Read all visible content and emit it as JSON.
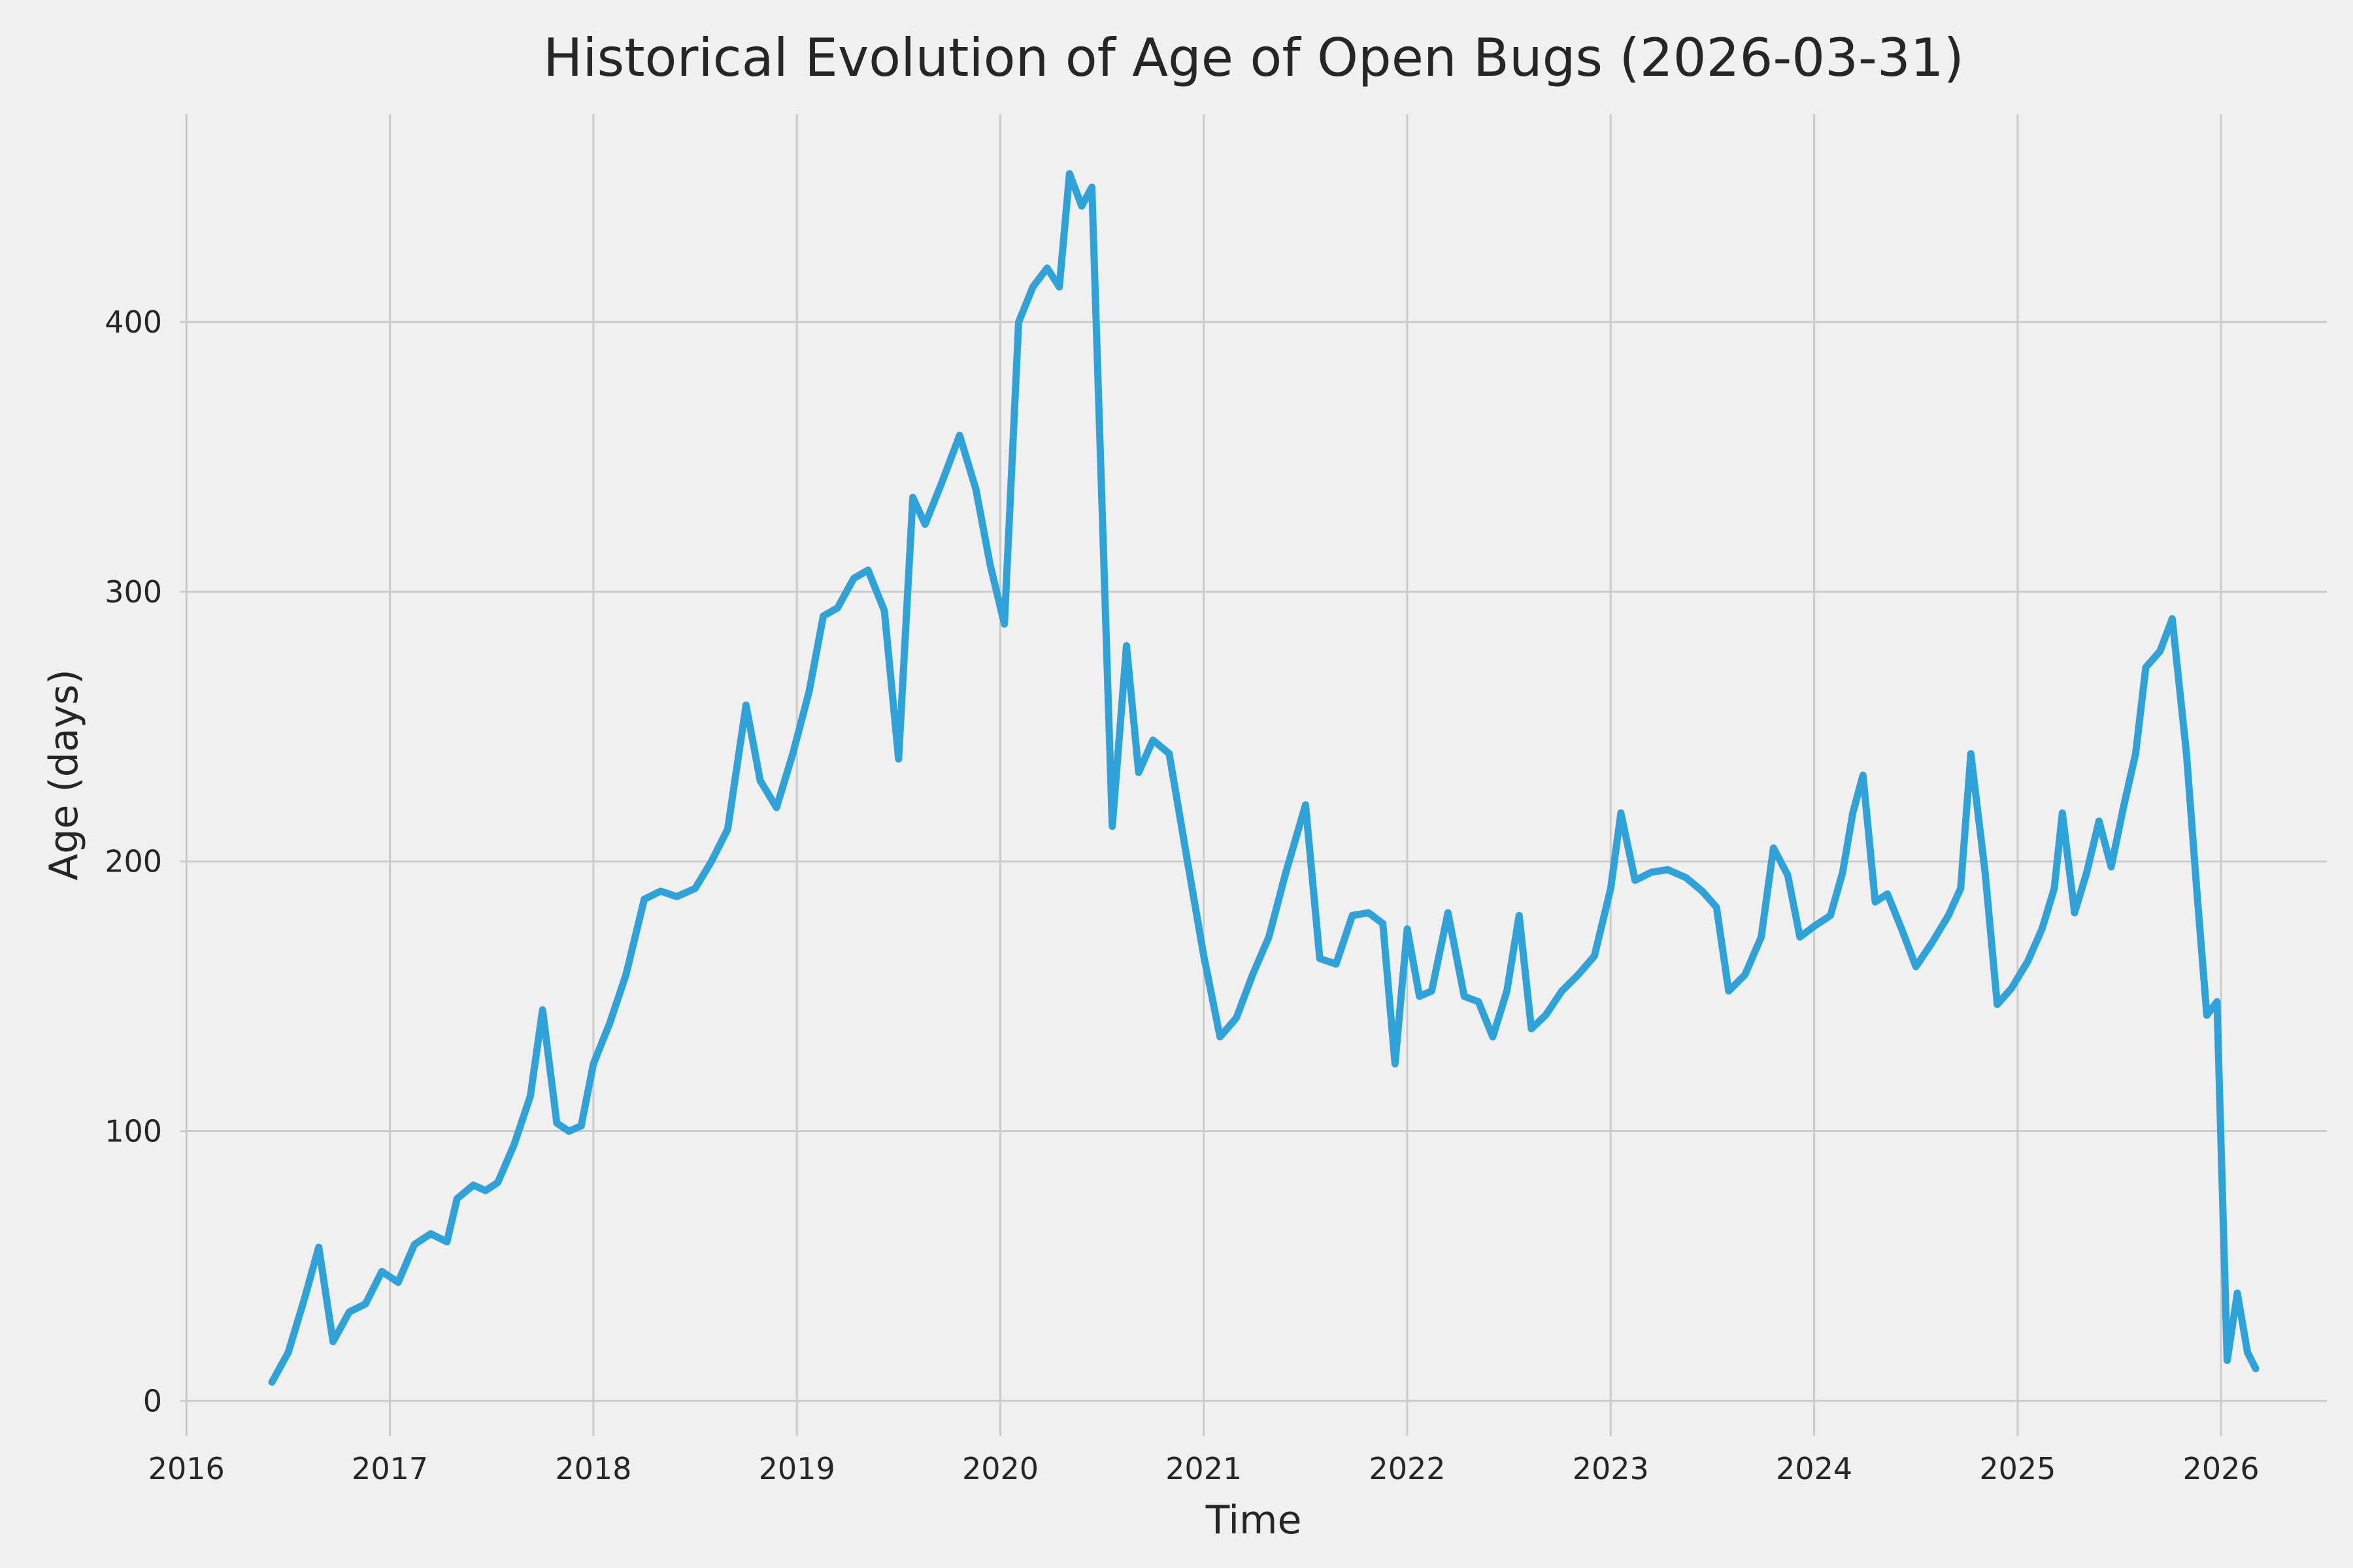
{
  "chart_data": {
    "type": "line",
    "title": "Historical Evolution of Age of Open Bugs (2026-03-31)",
    "xlabel": "Time",
    "ylabel": "Age (days)",
    "x_ticks": [
      2016,
      2017,
      2018,
      2019,
      2020,
      2021,
      2022,
      2023,
      2024,
      2025,
      2026
    ],
    "y_ticks": [
      0,
      100,
      200,
      300,
      400
    ],
    "xlim": [
      2015.97,
      2026.52
    ],
    "ylim": [
      -13,
      477
    ],
    "grid": true,
    "legend": false,
    "background_color": "#f0f0f0",
    "grid_color": "#cbcbcb",
    "line_color": "#30a2da",
    "text_color": "#262626",
    "series": [
      {
        "x": [
          2016.42,
          2016.5,
          2016.58,
          2016.65,
          2016.72,
          2016.8,
          2016.88,
          2016.96,
          2017.04,
          2017.12,
          2017.2,
          2017.28,
          2017.33,
          2017.41,
          2017.47,
          2017.53,
          2017.61,
          2017.69,
          2017.75,
          2017.82,
          2017.88,
          2017.94,
          2018.0,
          2018.08,
          2018.16,
          2018.25,
          2018.33,
          2018.41,
          2018.5,
          2018.58,
          2018.66,
          2018.75,
          2018.82,
          2018.9,
          2018.98,
          2019.06,
          2019.13,
          2019.2,
          2019.28,
          2019.35,
          2019.43,
          2019.5,
          2019.57,
          2019.63,
          2019.71,
          2019.8,
          2019.88,
          2019.95,
          2020.02,
          2020.09,
          2020.16,
          2020.23,
          2020.29,
          2020.34,
          2020.4,
          2020.45,
          2020.55,
          2020.62,
          2020.68,
          2020.75,
          2020.83,
          2020.92,
          2021.0,
          2021.08,
          2021.16,
          2021.24,
          2021.32,
          2021.4,
          2021.5,
          2021.57,
          2021.65,
          2021.73,
          2021.81,
          2021.88,
          2021.94,
          2022.0,
          2022.06,
          2022.12,
          2022.2,
          2022.28,
          2022.35,
          2022.42,
          2022.49,
          2022.55,
          2022.61,
          2022.68,
          2022.76,
          2022.84,
          2022.92,
          2023.0,
          2023.05,
          2023.12,
          2023.2,
          2023.28,
          2023.37,
          2023.45,
          2023.52,
          2023.58,
          2023.66,
          2023.74,
          2023.8,
          2023.87,
          2023.93,
          2024.0,
          2024.08,
          2024.14,
          2024.19,
          2024.24,
          2024.3,
          2024.36,
          2024.43,
          2024.5,
          2024.58,
          2024.66,
          2024.72,
          2024.77,
          2024.84,
          2024.9,
          2024.97,
          2025.05,
          2025.12,
          2025.18,
          2025.22,
          2025.28,
          2025.34,
          2025.4,
          2025.46,
          2025.52,
          2025.58,
          2025.63,
          2025.7,
          2025.76,
          2025.83,
          2025.88,
          2025.93,
          2025.98,
          2026.03,
          2026.08,
          2026.13,
          2026.17
        ],
        "y": [
          7,
          18,
          38,
          57,
          22,
          33,
          36,
          48,
          44,
          58,
          62,
          59,
          75,
          80,
          78,
          81,
          95,
          113,
          145,
          103,
          100,
          102,
          125,
          140,
          158,
          186,
          189,
          187,
          190,
          200,
          212,
          258,
          230,
          220,
          240,
          263,
          291,
          294,
          305,
          308,
          293,
          238,
          335,
          325,
          340,
          358,
          338,
          310,
          288,
          400,
          413,
          420,
          413,
          455,
          443,
          450,
          213,
          280,
          233,
          245,
          240,
          200,
          165,
          135,
          142,
          158,
          172,
          195,
          221,
          164,
          162,
          180,
          181,
          177,
          125,
          175,
          150,
          152,
          181,
          150,
          148,
          135,
          152,
          180,
          138,
          143,
          152,
          158,
          165,
          190,
          218,
          193,
          196,
          197,
          194,
          189,
          183,
          152,
          158,
          172,
          205,
          195,
          172,
          176,
          180,
          196,
          218,
          232,
          185,
          188,
          175,
          161,
          170,
          180,
          190,
          240,
          196,
          147,
          153,
          163,
          175,
          190,
          218,
          181,
          196,
          215,
          198,
          220,
          240,
          272,
          278,
          290,
          240,
          190,
          143,
          148,
          15,
          40,
          18,
          12
        ]
      }
    ]
  }
}
